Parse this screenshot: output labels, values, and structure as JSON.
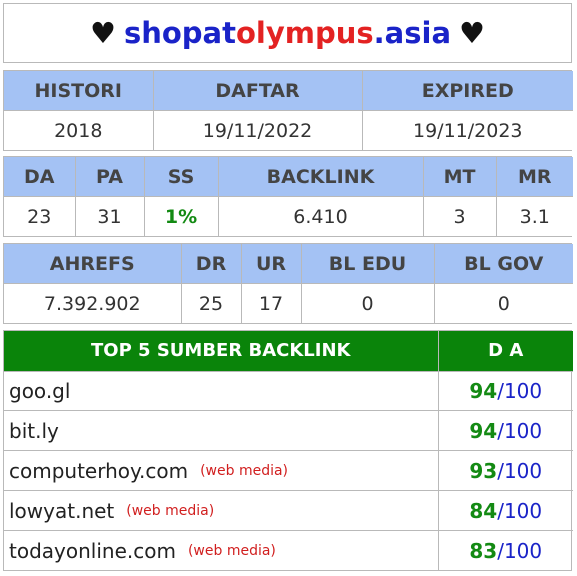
{
  "title": {
    "heart": "♥",
    "part1": "shopat",
    "part2": "olympus",
    "part3": ".asia"
  },
  "table1": {
    "headers": [
      "HISTORI",
      "DAFTAR",
      "EXPIRED"
    ],
    "values": [
      "2018",
      "19/11/2022",
      "19/11/2023"
    ]
  },
  "table2": {
    "headers": [
      "DA",
      "PA",
      "SS",
      "BACKLINK",
      "MT",
      "MR"
    ],
    "values": [
      "23",
      "31",
      "1%",
      "6.410",
      "3",
      "3.1"
    ]
  },
  "table3": {
    "headers": [
      "AHREFS",
      "DR",
      "UR",
      "BL EDU",
      "BL GOV"
    ],
    "values": [
      "7.392.902",
      "25",
      "17",
      "0",
      "0"
    ]
  },
  "backlinks": {
    "header_source": "TOP 5 SUMBER BACKLINK",
    "header_da": "D A",
    "max": "100",
    "separator": "/",
    "rows": [
      {
        "site": "goo.gl",
        "tag": "",
        "da": "94"
      },
      {
        "site": "bit.ly",
        "tag": "",
        "da": "94"
      },
      {
        "site": "computerhoy.com",
        "tag": "(web media)",
        "da": "93"
      },
      {
        "site": "lowyat.net",
        "tag": "(web media)",
        "da": "84"
      },
      {
        "site": "todayonline.com",
        "tag": "(web media)",
        "da": "83"
      }
    ]
  },
  "colors": {
    "header_blue": "#a4c2f4",
    "header_green": "#0a840a",
    "accent_blue": "#1a23c8",
    "accent_red": "#e32222",
    "accent_green": "#138a13"
  }
}
